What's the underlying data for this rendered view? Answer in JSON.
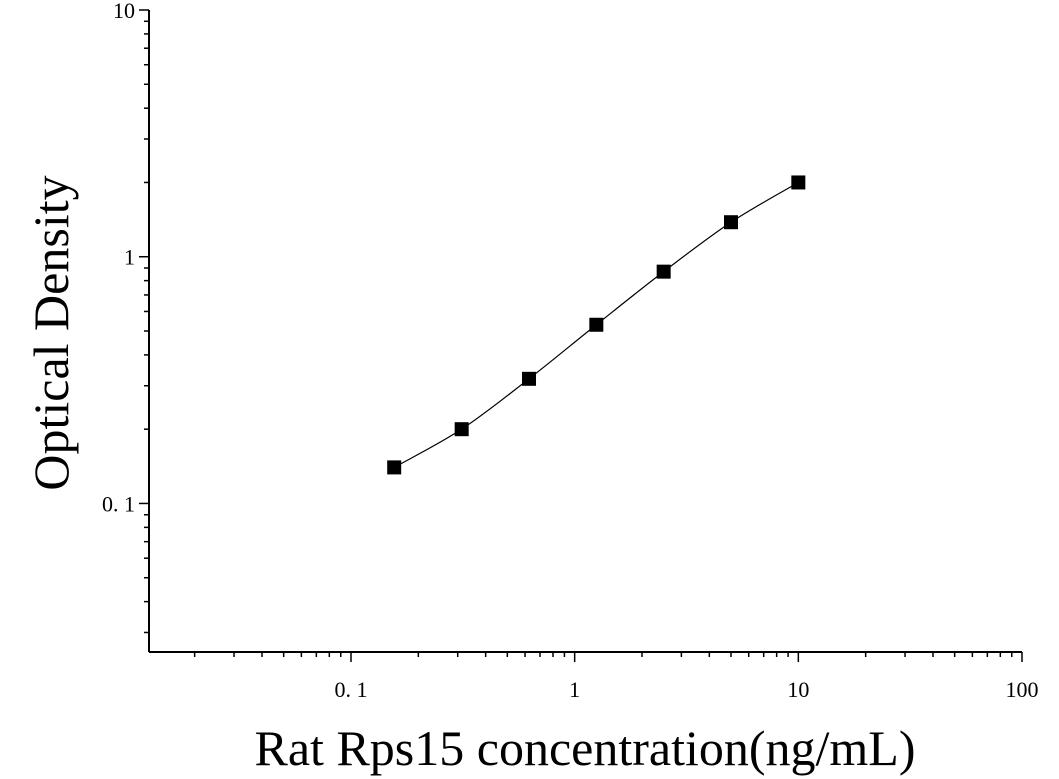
{
  "chart_data": {
    "type": "scatter",
    "xlabel": "Rat Rps15 concentration(ng/mL)",
    "ylabel": "Optical Density",
    "x_scale": "log",
    "y_scale": "log",
    "xlim": [
      0.0125,
      100
    ],
    "ylim": [
      0.025,
      10
    ],
    "x_ticks": [
      {
        "value": 0.1,
        "label": "0. 1"
      },
      {
        "value": 1,
        "label": "1"
      },
      {
        "value": 10,
        "label": "10"
      },
      {
        "value": 100,
        "label": "100"
      }
    ],
    "y_ticks": [
      {
        "value": 0.1,
        "label": "0. 1"
      },
      {
        "value": 1,
        "label": "1"
      },
      {
        "value": 10,
        "label": "10"
      }
    ],
    "grid": false,
    "series": [
      {
        "marker": "square",
        "color": "#000000",
        "fit_curve": true,
        "points": [
          {
            "x": 0.156,
            "y": 0.14
          },
          {
            "x": 0.3125,
            "y": 0.2
          },
          {
            "x": 0.625,
            "y": 0.32
          },
          {
            "x": 1.25,
            "y": 0.53
          },
          {
            "x": 2.5,
            "y": 0.87
          },
          {
            "x": 5,
            "y": 1.38
          },
          {
            "x": 10,
            "y": 2.0
          }
        ]
      }
    ]
  }
}
